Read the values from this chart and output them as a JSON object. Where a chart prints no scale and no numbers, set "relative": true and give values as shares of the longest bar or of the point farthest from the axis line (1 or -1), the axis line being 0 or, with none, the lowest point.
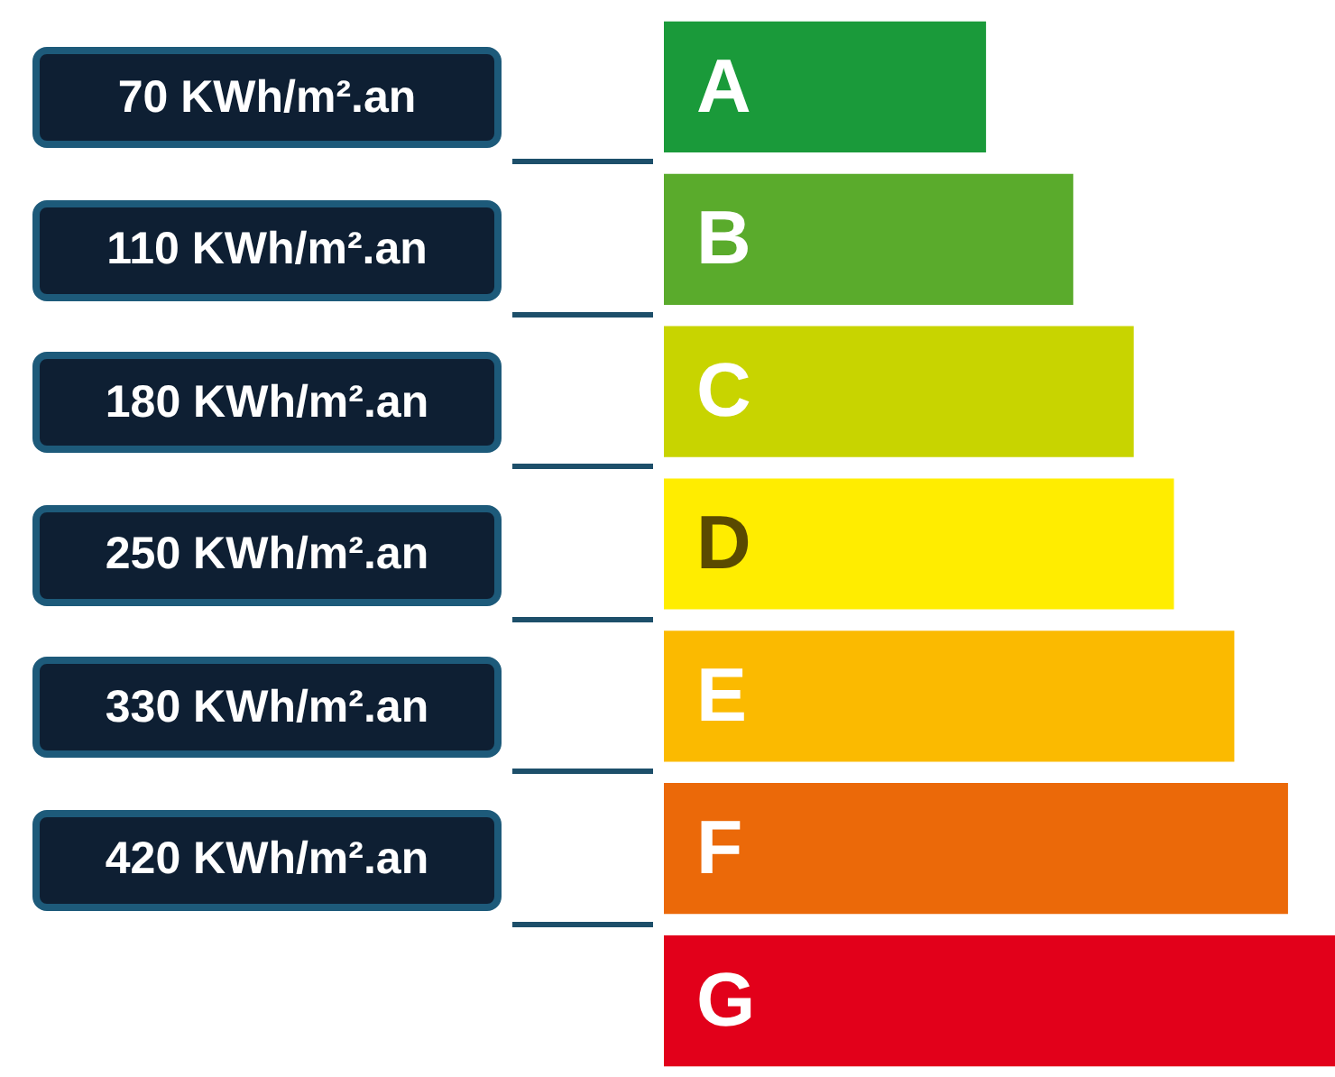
{
  "chart_data": {
    "type": "bar",
    "orientation": "horizontal",
    "relative": true,
    "categories": [
      "A",
      "B",
      "C",
      "D",
      "E",
      "F",
      "G"
    ],
    "values": [
      0.48,
      0.61,
      0.7,
      0.76,
      0.85,
      0.93,
      1
    ],
    "colors": [
      "#1a9a3a",
      "#5aab2c",
      "#c8d400",
      "#ffed00",
      "#fbba00",
      "#eb6909",
      "#e2001a"
    ],
    "annotations": [
      "70 KWh/m².an",
      "110 KWh/m².an",
      "180 KWh/m².an",
      "250 KWh/m².an",
      "330 KWh/m².an",
      "420 KWh/m².an"
    ]
  }
}
